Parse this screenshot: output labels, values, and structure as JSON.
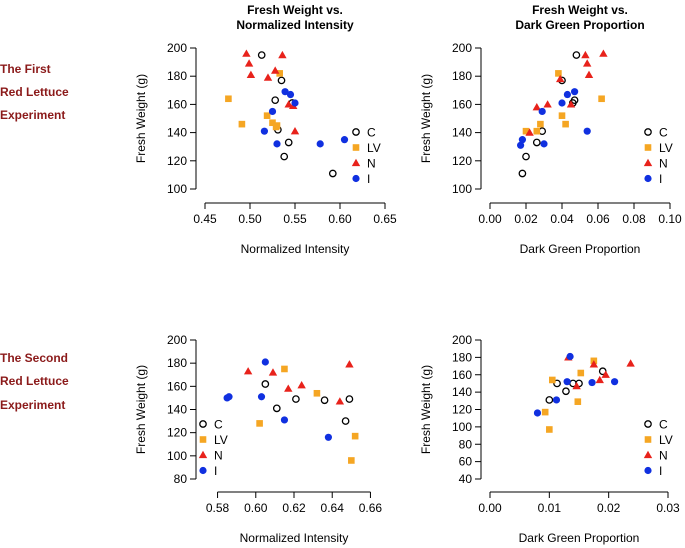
{
  "row_labels": [
    [
      "The First",
      "Red Lettuce",
      "Experiment"
    ],
    [
      "The Second",
      "Red Lettuce",
      "Experiment"
    ]
  ],
  "colors": {
    "C": "#000000",
    "LV": "#f5a623",
    "N": "#e8221b",
    "I": "#1030e0",
    "row_label": "#8b1a1a"
  },
  "chart_data": [
    {
      "type": "scatter",
      "title": [
        "Fresh Weight vs.",
        "Normalized Intensity"
      ],
      "xlabel": "Normalized Intensity",
      "ylabel": "Fresh Weight (g)",
      "xlim": [
        0.45,
        0.65
      ],
      "ylim": [
        100,
        200
      ],
      "xticks": [
        0.45,
        0.5,
        0.55,
        0.6,
        0.65
      ],
      "xtick_labels": [
        "0.45",
        "0.50",
        "0.55",
        "0.60",
        "0.65"
      ],
      "yticks": [
        100,
        120,
        140,
        160,
        180,
        200
      ],
      "ytick_labels": [
        "100",
        "120",
        "140",
        "160",
        "180",
        "200"
      ],
      "legend": [
        "C",
        "LV",
        "N",
        "I"
      ],
      "series": [
        {
          "name": "C",
          "marker": "open-circle",
          "points": [
            [
              0.513,
              195
            ],
            [
              0.528,
              163
            ],
            [
              0.535,
              177
            ],
            [
              0.531,
              142
            ],
            [
              0.543,
              133
            ],
            [
              0.538,
              123
            ],
            [
              0.547,
              161
            ],
            [
              0.592,
              111
            ]
          ]
        },
        {
          "name": "LV",
          "marker": "square",
          "points": [
            [
              0.476,
              164
            ],
            [
              0.491,
              146
            ],
            [
              0.519,
              152
            ],
            [
              0.525,
              147
            ],
            [
              0.529,
              144
            ],
            [
              0.533,
              182
            ],
            [
              0.53,
              145
            ]
          ]
        },
        {
          "name": "N",
          "marker": "triangle",
          "points": [
            [
              0.496,
              196
            ],
            [
              0.499,
              189
            ],
            [
              0.501,
              181
            ],
            [
              0.52,
              179
            ],
            [
              0.528,
              184
            ],
            [
              0.536,
              195
            ],
            [
              0.543,
              160
            ],
            [
              0.548,
              159
            ],
            [
              0.55,
              141
            ]
          ]
        },
        {
          "name": "I",
          "marker": "filled-circle",
          "points": [
            [
              0.516,
              141
            ],
            [
              0.53,
              132
            ],
            [
              0.525,
              155
            ],
            [
              0.539,
              169
            ],
            [
              0.545,
              167
            ],
            [
              0.55,
              161
            ],
            [
              0.578,
              132
            ],
            [
              0.605,
              135
            ]
          ]
        }
      ]
    },
    {
      "type": "scatter",
      "title": [
        "Fresh Weight vs.",
        "Dark Green Proportion"
      ],
      "xlabel": "Dark Green Proportion",
      "ylabel": "Fresh Weight (g)",
      "xlim": [
        0.0,
        0.1
      ],
      "ylim": [
        100,
        200
      ],
      "xticks": [
        0.0,
        0.02,
        0.04,
        0.06,
        0.08,
        0.1
      ],
      "xtick_labels": [
        "0.00",
        "0.02",
        "0.04",
        "0.06",
        "0.08",
        "0.10"
      ],
      "yticks": [
        100,
        120,
        140,
        160,
        180,
        200
      ],
      "ytick_labels": [
        "100",
        "120",
        "140",
        "160",
        "180",
        "200"
      ],
      "legend": [
        "C",
        "LV",
        "N",
        "I"
      ],
      "series": [
        {
          "name": "C",
          "marker": "open-circle",
          "points": [
            [
              0.018,
              111
            ],
            [
              0.02,
              123
            ],
            [
              0.026,
              133
            ],
            [
              0.029,
              141
            ],
            [
              0.04,
              177
            ],
            [
              0.046,
              161
            ],
            [
              0.047,
              163
            ],
            [
              0.048,
              195
            ]
          ]
        },
        {
          "name": "LV",
          "marker": "square",
          "points": [
            [
              0.02,
              141
            ],
            [
              0.026,
              141
            ],
            [
              0.028,
              146
            ],
            [
              0.038,
              182
            ],
            [
              0.04,
              152
            ],
            [
              0.042,
              146
            ],
            [
              0.062,
              164
            ]
          ]
        },
        {
          "name": "N",
          "marker": "triangle",
          "points": [
            [
              0.022,
              140
            ],
            [
              0.026,
              158
            ],
            [
              0.032,
              160
            ],
            [
              0.039,
              178
            ],
            [
              0.053,
              195
            ],
            [
              0.054,
              189
            ],
            [
              0.055,
              181
            ],
            [
              0.063,
              196
            ],
            [
              0.045,
              160
            ]
          ]
        },
        {
          "name": "I",
          "marker": "filled-circle",
          "points": [
            [
              0.017,
              131
            ],
            [
              0.018,
              135
            ],
            [
              0.029,
              155
            ],
            [
              0.03,
              132
            ],
            [
              0.043,
              167
            ],
            [
              0.047,
              169
            ],
            [
              0.054,
              141
            ],
            [
              0.04,
              161
            ]
          ]
        }
      ]
    },
    {
      "type": "scatter",
      "title": [],
      "xlabel": "Normalized Intensity",
      "ylabel": "Fresh Weight (g)",
      "xlim": [
        0.575,
        0.665
      ],
      "ylim": [
        80,
        200
      ],
      "xticks": [
        0.58,
        0.6,
        0.62,
        0.64,
        0.66
      ],
      "xtick_labels": [
        "0.58",
        "0.60",
        "0.62",
        "0.64",
        "0.66"
      ],
      "yticks": [
        80,
        100,
        120,
        140,
        160,
        180,
        200
      ],
      "ytick_labels": [
        "80",
        "100",
        "120",
        "140",
        "160",
        "180",
        "200"
      ],
      "legend": [
        "C",
        "LV",
        "N",
        "I"
      ],
      "series": [
        {
          "name": "C",
          "marker": "open-circle",
          "points": [
            [
              0.605,
              162
            ],
            [
              0.611,
              141
            ],
            [
              0.621,
              149
            ],
            [
              0.636,
              148
            ],
            [
              0.647,
              130
            ],
            [
              0.649,
              149
            ]
          ]
        },
        {
          "name": "LV",
          "marker": "square",
          "points": [
            [
              0.602,
              128
            ],
            [
              0.615,
              175
            ],
            [
              0.632,
              154
            ],
            [
              0.65,
              96
            ],
            [
              0.652,
              117
            ]
          ]
        },
        {
          "name": "N",
          "marker": "triangle",
          "points": [
            [
              0.596,
              173
            ],
            [
              0.609,
              172
            ],
            [
              0.617,
              158
            ],
            [
              0.624,
              161
            ],
            [
              0.644,
              147
            ],
            [
              0.649,
              179
            ]
          ]
        },
        {
          "name": "I",
          "marker": "filled-circle",
          "points": [
            [
              0.585,
              150
            ],
            [
              0.586,
              151
            ],
            [
              0.603,
              151
            ],
            [
              0.605,
              181
            ],
            [
              0.615,
              131
            ],
            [
              0.638,
              116
            ]
          ]
        }
      ]
    },
    {
      "type": "scatter",
      "title": [],
      "xlabel": "Dark Green Proportion",
      "ylabel": "Fresh Weight (g)",
      "xlim": [
        0.0,
        0.03
      ],
      "ylim": [
        40,
        200
      ],
      "xticks": [
        0.0,
        0.01,
        0.02,
        0.03
      ],
      "xtick_labels": [
        "0.00",
        "0.01",
        "0.02",
        "0.03"
      ],
      "yticks": [
        40,
        60,
        80,
        100,
        120,
        140,
        160,
        180,
        200
      ],
      "ytick_labels": [
        "40",
        "60",
        "80",
        "100",
        "120",
        "140",
        "160",
        "180",
        "200"
      ],
      "legend": [
        "C",
        "LV",
        "N",
        "I"
      ],
      "series": [
        {
          "name": "C",
          "marker": "open-circle",
          "points": [
            [
              0.01,
              131
            ],
            [
              0.0113,
              150
            ],
            [
              0.0128,
              141
            ],
            [
              0.014,
              150
            ],
            [
              0.015,
              150
            ],
            [
              0.019,
              164
            ]
          ]
        },
        {
          "name": "LV",
          "marker": "square",
          "points": [
            [
              0.0093,
              117
            ],
            [
              0.01,
              97
            ],
            [
              0.0105,
              154
            ],
            [
              0.0148,
              129
            ],
            [
              0.0153,
              162
            ],
            [
              0.0175,
              176
            ]
          ]
        },
        {
          "name": "N",
          "marker": "triangle",
          "points": [
            [
              0.0132,
              180
            ],
            [
              0.0146,
              147
            ],
            [
              0.0175,
              172
            ],
            [
              0.0185,
              154
            ],
            [
              0.0195,
              160
            ],
            [
              0.0237,
              173
            ]
          ]
        },
        {
          "name": "I",
          "marker": "filled-circle",
          "points": [
            [
              0.008,
              116
            ],
            [
              0.0112,
              131
            ],
            [
              0.013,
              152
            ],
            [
              0.0135,
              181
            ],
            [
              0.0172,
              151
            ],
            [
              0.021,
              152
            ]
          ]
        }
      ]
    }
  ]
}
